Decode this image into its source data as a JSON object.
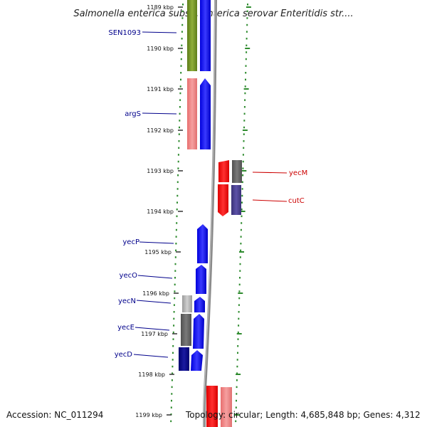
{
  "title": "Salmonella enterica subsp. enterica serovar Enteritidis str....",
  "accession": "Accession: NC_011294",
  "topology": "Topology: circular; Length: 4,685,848 bp; Genes: 4,312",
  "scale_labels": [
    "1189 kbp",
    "1190 kbp",
    "1191 kbp",
    "1192 kbp",
    "1193 kbp",
    "1194 kbp",
    "1195 kbp",
    "1196 kbp",
    "1197 kbp",
    "1198 kbp",
    "1199 kbp"
  ],
  "colors": {
    "left_label": "#00008b",
    "right_label": "#cc0000",
    "green_feature": "#6b8e23",
    "blue_feature": "#0000ff",
    "pink_feature": "#f08080",
    "red_feature": "#ff0000",
    "gray_feature": "#606060",
    "navy_feature": "#000080",
    "slate_feature": "#483d8b",
    "light_gray_feature": "#b0b0b0",
    "tick_green": "#2e8b2e",
    "backbone": "#808080"
  },
  "genes_left": [
    {
      "name": "SEN1093"
    },
    {
      "name": "argS"
    },
    {
      "name": "yecP"
    },
    {
      "name": "yecO"
    },
    {
      "name": "yecN"
    },
    {
      "name": "yecE"
    },
    {
      "name": "yecD"
    }
  ],
  "genes_right": [
    {
      "name": "yecM"
    },
    {
      "name": "cutC"
    }
  ]
}
